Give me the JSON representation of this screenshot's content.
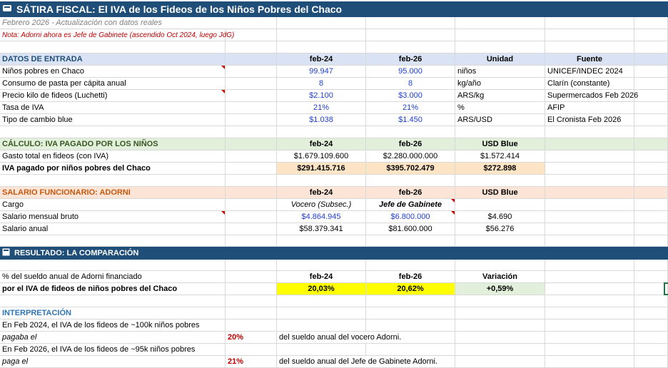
{
  "title": "SÁTIRA FISCAL: El IVA de los Fideos de los Niños Pobres del Chaco",
  "subtitle": "Febrero 2026 - Actualización con datos reales",
  "note": "Nota: Adorni ahora es Jefe de Gabinete (ascendido Oct 2024, luego JdG)",
  "input": {
    "header": [
      "DATOS DE ENTRADA",
      "feb-24",
      "feb-26",
      "Unidad",
      "Fuente"
    ],
    "rows": [
      [
        "Niños pobres en Chaco",
        "99.947",
        "95.000",
        "niños",
        "UNICEF/INDEC 2024"
      ],
      [
        "Consumo de pasta per cápita anual",
        "8",
        "8",
        "kg/año",
        "Clarín (constante)"
      ],
      [
        "Precio kilo de fideos (Luchetti)",
        "$2.100",
        "$3.000",
        "ARS/kg",
        "Supermercados Feb 2026"
      ],
      [
        "Tasa de IVA",
        "21%",
        "21%",
        "%",
        "AFIP"
      ],
      [
        "Tipo de cambio blue",
        "$1.038",
        "$1.450",
        "ARS/USD",
        "El Cronista Feb 2026"
      ]
    ]
  },
  "calc": {
    "header": [
      "CÁLCULO: IVA PAGADO POR LOS NIÑOS",
      "feb-24",
      "feb-26",
      "USD Blue"
    ],
    "rows": [
      [
        "Gasto total en fideos (con IVA)",
        "$1.679.109.600",
        "$2.280.000.000",
        "$1.572.414"
      ],
      [
        "IVA pagado por niños pobres del Chaco",
        "$291.415.716",
        "$395.702.479",
        "$272.898"
      ]
    ]
  },
  "salary": {
    "header": [
      "SALARIO FUNCIONARIO: ADORNI",
      "feb-24",
      "feb-26",
      "USD Blue"
    ],
    "rows": [
      [
        "Cargo",
        "Vocero (Subsec.)",
        "Jefe de Gabinete",
        ""
      ],
      [
        "Salario mensual bruto",
        "$4.864.945",
        "$6.800.000",
        "$4.690"
      ],
      [
        "Salario anual",
        "$58.379.341",
        "$81.600.000",
        "$56.276"
      ]
    ]
  },
  "result": {
    "header": "RESULTADO: LA COMPARACIÓN",
    "icon": "ballot-box-icon",
    "colheads": [
      "% del sueldo anual de Adorni financiado",
      "feb-24",
      "feb-26",
      "Variación"
    ],
    "row": [
      "por el IVA de fideos de niños pobres del Chaco",
      "20,03%",
      "20,62%",
      "+0,59%"
    ]
  },
  "interp": {
    "header": "INTERPRETACIÓN",
    "lines": [
      {
        "a": "En Feb 2024, el IVA de los fideos de ~100k niños pobres",
        "b": "",
        "c": ""
      },
      {
        "a": "pagaba el",
        "b": "20%",
        "c": "del sueldo anual del vocero Adorni."
      },
      {
        "a": "En Feb 2026, el IVA de los fideos de ~95k niños pobres",
        "b": "",
        "c": ""
      },
      {
        "a": "paga el",
        "b": "21%",
        "c": "del sueldo anual del Jefe de Gabinete Adorni."
      }
    ]
  },
  "colors": {
    "title_bg": "#1f4e79",
    "input_hdr": "#dae3f3",
    "calc_hdr": "#e2efda",
    "salary_hdr": "#fce4d6",
    "highlight": "#ffff00"
  }
}
